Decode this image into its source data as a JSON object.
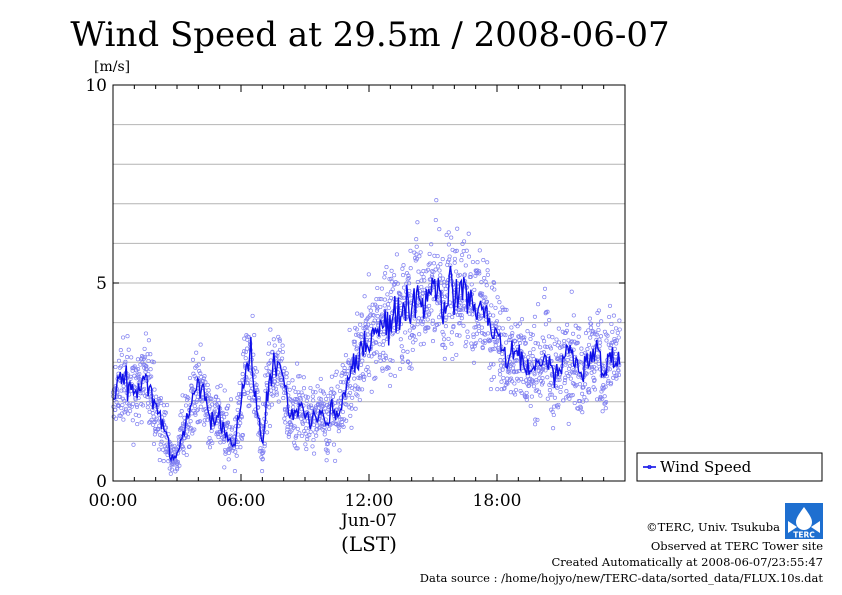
{
  "chart_data": {
    "type": "scatter",
    "title": "Wind Speed at 29.5m / 2008-06-07",
    "ylabel": "[m/s]",
    "xlabel": "(LST)",
    "date_label": "Jun-07",
    "ylim": [
      0,
      10
    ],
    "y_ticks": [
      "0",
      "5",
      "10"
    ],
    "x_ticks": [
      "00:00",
      "06:00",
      "12:00",
      "18:00"
    ],
    "x_tick_hours": [
      0,
      6,
      12,
      18
    ],
    "xlim_hours": [
      0,
      24
    ],
    "grid": true,
    "legend_position": "bottom-right",
    "series": [
      {
        "name": "Wind Speed",
        "style": "points + smoothed line",
        "color": "#1010e8",
        "point_color": "#8080f0",
        "x_hours": [
          0.0,
          0.25,
          0.5,
          0.75,
          1.0,
          1.25,
          1.5,
          1.75,
          2.0,
          2.25,
          2.5,
          2.75,
          3.0,
          3.25,
          3.5,
          3.75,
          4.0,
          4.25,
          4.5,
          4.75,
          5.0,
          5.25,
          5.5,
          5.75,
          6.0,
          6.25,
          6.5,
          6.75,
          7.0,
          7.25,
          7.5,
          7.75,
          8.0,
          8.25,
          8.5,
          8.75,
          9.0,
          9.25,
          9.5,
          9.75,
          10.0,
          10.25,
          10.5,
          10.75,
          11.0,
          11.25,
          11.5,
          11.75,
          12.0,
          12.25,
          12.5,
          12.75,
          13.0,
          13.25,
          13.5,
          13.75,
          14.0,
          14.25,
          14.5,
          14.75,
          15.0,
          15.25,
          15.5,
          15.75,
          16.0,
          16.25,
          16.5,
          16.75,
          17.0,
          17.25,
          17.5,
          17.75,
          18.0,
          18.25,
          18.5,
          18.75,
          19.0,
          19.25,
          19.5,
          19.75,
          20.0,
          20.25,
          20.5,
          20.75,
          21.0,
          21.25,
          21.5,
          21.75,
          22.0,
          22.25,
          22.5,
          22.75,
          23.0,
          23.25,
          23.5,
          23.75
        ],
        "values": [
          2.0,
          2.4,
          2.6,
          2.4,
          2.2,
          2.4,
          2.6,
          2.3,
          1.8,
          1.5,
          1.2,
          0.6,
          0.5,
          1.2,
          1.6,
          2.0,
          2.4,
          2.2,
          1.7,
          1.5,
          1.6,
          1.3,
          1.0,
          1.1,
          2.0,
          2.9,
          3.1,
          1.8,
          0.8,
          2.4,
          2.9,
          2.8,
          2.6,
          1.7,
          1.6,
          1.9,
          1.7,
          1.5,
          1.6,
          1.8,
          1.3,
          1.9,
          1.6,
          2.0,
          2.5,
          2.8,
          3.0,
          3.4,
          3.6,
          3.8,
          4.1,
          4.0,
          3.8,
          4.2,
          4.3,
          4.5,
          4.4,
          4.8,
          4.5,
          4.6,
          5.2,
          4.8,
          4.3,
          5.0,
          4.6,
          4.9,
          4.7,
          4.6,
          4.4,
          4.3,
          4.2,
          3.9,
          3.8,
          3.3,
          3.0,
          3.2,
          3.3,
          3.0,
          2.7,
          2.9,
          2.9,
          3.3,
          2.8,
          2.6,
          2.8,
          3.2,
          3.4,
          2.8,
          2.7,
          3.2,
          3.1,
          3.3,
          2.6,
          3.1,
          3.2,
          3.0
        ]
      }
    ]
  },
  "credits": {
    "copyright": "©TERC, Univ. Tsukuba",
    "observed": "Observed at TERC Tower site",
    "created": "Created Automatically at 2008-06-07/23:55:47",
    "source": "Data source : /home/hojyo/new/TERC-data/sorted_data/FLUX.10s.dat"
  },
  "logo": {
    "text": "TERC",
    "color": "#1e6fd0",
    "icon": "terc-logo-icon"
  }
}
